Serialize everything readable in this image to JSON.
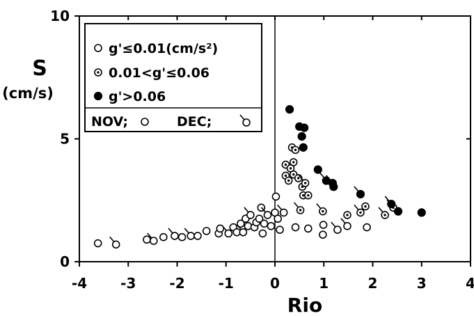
{
  "chart_data": {
    "type": "scatter",
    "xlabel": "Rio",
    "ylabel": "S",
    "ylabel_unit": "(cm/s)",
    "xlim": [
      -4,
      4
    ],
    "ylim": [
      0,
      10
    ],
    "x_ticks": [
      -4,
      -3,
      -2,
      -1,
      0,
      1,
      2,
      3,
      4
    ],
    "y_ticks": [
      0,
      5,
      10
    ],
    "x_tick_labels": [
      "-4",
      "-3",
      "-2",
      "-1",
      "0",
      "1",
      "2",
      "3",
      "4"
    ],
    "y_tick_labels": [
      "0",
      "5",
      "10"
    ],
    "vertical_reference_line_x": 0,
    "grid": false,
    "legend": {
      "placement": "top-left",
      "entries": [
        {
          "marker": "open-circle",
          "label": "g'≤0.01(cm/s²)"
        },
        {
          "marker": "dotted-circle",
          "label": "0.01<g'≤0.06"
        },
        {
          "marker": "filled-circle",
          "label": "g'>0.06"
        }
      ],
      "month_key": [
        {
          "label": "NOV;",
          "marker": "plain"
        },
        {
          "label": "DEC;",
          "marker": "tailed"
        }
      ]
    },
    "series": [
      {
        "marker": "open-circle",
        "points": [
          {
            "x": -3.62,
            "y": 0.75,
            "month": "NOV"
          },
          {
            "x": -3.25,
            "y": 0.7,
            "month": "DEC"
          },
          {
            "x": -2.62,
            "y": 0.9,
            "month": "NOV"
          },
          {
            "x": -2.48,
            "y": 0.85,
            "month": "DEC"
          },
          {
            "x": -2.28,
            "y": 1.0,
            "month": "NOV"
          },
          {
            "x": -2.05,
            "y": 1.05,
            "month": "DEC"
          },
          {
            "x": -1.9,
            "y": 1.0,
            "month": "NOV"
          },
          {
            "x": -1.72,
            "y": 1.05,
            "month": "DEC"
          },
          {
            "x": -1.58,
            "y": 1.05,
            "month": "NOV"
          },
          {
            "x": -1.4,
            "y": 1.25,
            "month": "NOV"
          },
          {
            "x": -1.15,
            "y": 1.15,
            "month": "NOV"
          },
          {
            "x": -1.12,
            "y": 1.35,
            "month": "NOV"
          },
          {
            "x": -0.95,
            "y": 1.15,
            "month": "DEC"
          },
          {
            "x": -0.85,
            "y": 1.4,
            "month": "NOV"
          },
          {
            "x": -0.78,
            "y": 1.2,
            "month": "NOV"
          },
          {
            "x": -0.7,
            "y": 1.55,
            "month": "NOV"
          },
          {
            "x": -0.65,
            "y": 1.2,
            "month": "DEC"
          },
          {
            "x": -0.6,
            "y": 1.75,
            "month": "NOV"
          },
          {
            "x": -0.55,
            "y": 1.45,
            "month": "NOV"
          },
          {
            "x": -0.5,
            "y": 1.9,
            "month": "DEC"
          },
          {
            "x": -0.42,
            "y": 1.4,
            "month": "NOV"
          },
          {
            "x": -0.38,
            "y": 1.6,
            "month": "NOV"
          },
          {
            "x": -0.32,
            "y": 1.75,
            "month": "NOV"
          },
          {
            "x": -0.28,
            "y": 2.2,
            "month": "NOV"
          },
          {
            "x": -0.25,
            "y": 1.15,
            "month": "NOV"
          },
          {
            "x": -0.22,
            "y": 1.55,
            "month": "NOV"
          },
          {
            "x": -0.15,
            "y": 1.9,
            "month": "DEC"
          },
          {
            "x": -0.08,
            "y": 1.45,
            "month": "NOV"
          },
          {
            "x": 0.0,
            "y": 2.0,
            "month": "NOV"
          },
          {
            "x": 0.02,
            "y": 2.65,
            "month": "NOV"
          },
          {
            "x": 0.06,
            "y": 1.75,
            "month": "NOV"
          },
          {
            "x": 0.1,
            "y": 1.3,
            "month": "NOV"
          },
          {
            "x": 0.18,
            "y": 2.0,
            "month": "DEC"
          },
          {
            "x": 0.42,
            "y": 1.4,
            "month": "NOV"
          },
          {
            "x": 0.68,
            "y": 1.35,
            "month": "NOV"
          },
          {
            "x": 0.98,
            "y": 1.1,
            "month": "NOV"
          },
          {
            "x": 0.99,
            "y": 1.5,
            "month": "NOV"
          },
          {
            "x": 1.28,
            "y": 1.3,
            "month": "DEC"
          },
          {
            "x": 1.48,
            "y": 1.45,
            "month": "DEC"
          },
          {
            "x": 1.88,
            "y": 1.4,
            "month": "NOV"
          }
        ]
      },
      {
        "marker": "dotted-circle",
        "points": [
          {
            "x": 0.35,
            "y": 4.65,
            "month": "NOV"
          },
          {
            "x": 0.42,
            "y": 4.55,
            "month": "NOV"
          },
          {
            "x": 0.22,
            "y": 3.95,
            "month": "NOV"
          },
          {
            "x": 0.32,
            "y": 3.8,
            "month": "NOV"
          },
          {
            "x": 0.38,
            "y": 4.05,
            "month": "NOV"
          },
          {
            "x": 0.22,
            "y": 3.5,
            "month": "NOV"
          },
          {
            "x": 0.28,
            "y": 3.3,
            "month": "NOV"
          },
          {
            "x": 0.38,
            "y": 3.55,
            "month": "NOV"
          },
          {
            "x": 0.48,
            "y": 3.4,
            "month": "NOV"
          },
          {
            "x": 0.56,
            "y": 3.05,
            "month": "NOV"
          },
          {
            "x": 0.62,
            "y": 3.2,
            "month": "DEC"
          },
          {
            "x": 0.58,
            "y": 2.7,
            "month": "NOV"
          },
          {
            "x": 0.68,
            "y": 2.7,
            "month": "NOV"
          },
          {
            "x": 0.52,
            "y": 2.1,
            "month": "DEC"
          },
          {
            "x": 0.98,
            "y": 2.05,
            "month": "DEC"
          },
          {
            "x": 1.48,
            "y": 1.9,
            "month": "NOV"
          },
          {
            "x": 1.75,
            "y": 2.0,
            "month": "DEC"
          },
          {
            "x": 1.85,
            "y": 2.25,
            "month": "NOV"
          },
          {
            "x": 2.25,
            "y": 1.9,
            "month": "DEC"
          },
          {
            "x": 2.42,
            "y": 2.2,
            "month": "DEC"
          }
        ]
      },
      {
        "marker": "filled-circle",
        "points": [
          {
            "x": 0.3,
            "y": 6.2,
            "month": "NOV"
          },
          {
            "x": 0.5,
            "y": 5.5,
            "month": "NOV"
          },
          {
            "x": 0.6,
            "y": 5.45,
            "month": "NOV"
          },
          {
            "x": 0.55,
            "y": 5.1,
            "month": "NOV"
          },
          {
            "x": 0.58,
            "y": 4.65,
            "month": "NOV"
          },
          {
            "x": 0.88,
            "y": 3.75,
            "month": "NOV"
          },
          {
            "x": 1.05,
            "y": 3.3,
            "month": "DEC"
          },
          {
            "x": 1.18,
            "y": 3.2,
            "month": "DEC"
          },
          {
            "x": 1.2,
            "y": 3.05,
            "month": "NOV"
          },
          {
            "x": 1.75,
            "y": 2.75,
            "month": "DEC"
          },
          {
            "x": 2.38,
            "y": 2.35,
            "month": "DEC"
          },
          {
            "x": 2.52,
            "y": 2.05,
            "month": "NOV"
          },
          {
            "x": 3.0,
            "y": 2.0,
            "month": "NOV"
          }
        ]
      }
    ]
  }
}
